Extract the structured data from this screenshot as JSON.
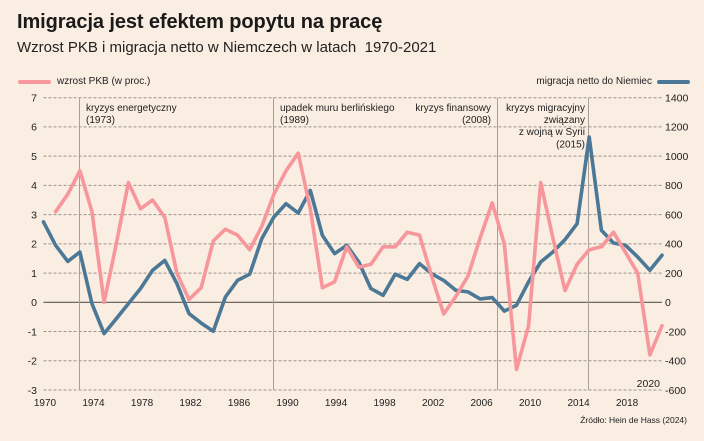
{
  "header": {
    "title": "Imigracja jest efektem popytu na pracę",
    "subtitle": "Wzrost PKB i migracja netto w Niemczech w latach  1970-2021"
  },
  "legend": {
    "gdp_label": "wzrost PKB (w proc.)",
    "migration_label": "migracja netto do Niemiec"
  },
  "colors": {
    "background": "#FAEDE1",
    "gdp": "#F7979B",
    "migration": "#4A7896",
    "grid": "#9C958E",
    "zero_line": "#5E5852"
  },
  "annotations": [
    {
      "year": 1973,
      "lines": [
        "kryzys energetyczny",
        "(1973)"
      ]
    },
    {
      "year": 1989,
      "lines": [
        "upadek muru berlińskiego",
        "(1989)"
      ]
    },
    {
      "year": 2008,
      "lines": [
        "kryzys finansowy",
        "(2008)"
      ]
    },
    {
      "year": 2015,
      "lines": [
        "kryzys migracyjny",
        "związany",
        "z wojną w Syrii",
        "(2015)"
      ]
    }
  ],
  "end_label": "2020",
  "source": "Źródło: Hein de Hass (2024)",
  "chart_data": {
    "type": "line",
    "title": "Imigracja jest efektem popytu na pracę",
    "subtitle": "Wzrost PKB i migracja netto w Niemczech w latach 1970-2021",
    "xlabel": "",
    "x_range": [
      1970,
      2021
    ],
    "x_ticks": [
      "1970",
      "1974",
      "1978",
      "1982",
      "1986",
      "1990",
      "1994",
      "1998",
      "2002",
      "2006",
      "2010",
      "2014",
      "2018"
    ],
    "y_left": {
      "label": "wzrost PKB (w proc.)",
      "range": [
        -3,
        7
      ],
      "ticks": [
        "7",
        "6",
        "5",
        "4",
        "3",
        "2",
        "1",
        "0",
        "-1",
        "-2",
        "-3"
      ]
    },
    "y_right": {
      "label": "migracja netto do Niemiec",
      "range": [
        -600,
        1400
      ],
      "ticks": [
        "1400",
        "1200",
        "1000",
        "800",
        "600",
        "400",
        "200",
        "0",
        "-200",
        "-400",
        "-600"
      ]
    },
    "grid": true,
    "legend_placement": "top",
    "series": [
      {
        "name": "migracja netto do Niemiec",
        "axis": "right",
        "color": "#4A7896",
        "x": [
          1970,
          1971,
          1972,
          1973,
          1974,
          1975,
          1976,
          1977,
          1978,
          1979,
          1980,
          1981,
          1982,
          1983,
          1984,
          1985,
          1986,
          1987,
          1988,
          1989,
          1990,
          1991,
          1992,
          1993,
          1994,
          1995,
          1996,
          1997,
          1998,
          1999,
          2000,
          2001,
          2002,
          2003,
          2004,
          2005,
          2006,
          2007,
          2008,
          2009,
          2010,
          2011,
          2012,
          2013,
          2014,
          2015,
          2016,
          2017,
          2018,
          2019,
          2020,
          2021
        ],
        "values": [
          550,
          390,
          280,
          344,
          -10,
          -214,
          -112,
          -9,
          94,
          219,
          287,
          128,
          -77,
          -142,
          -198,
          36,
          150,
          192,
          436,
          584,
          675,
          611,
          766,
          458,
          333,
          390,
          276,
          94,
          48,
          192,
          157,
          265,
          196,
          150,
          82,
          71,
          23,
          32,
          -60,
          -20,
          140,
          276,
          344,
          429,
          538,
          1131,
          493,
          406,
          390,
          310,
          219,
          322
        ]
      },
      {
        "name": "wzrost PKB (w proc.)",
        "axis": "left",
        "color": "#F7979B",
        "x": [
          1971,
          1972,
          1973,
          1974,
          1975,
          1976,
          1977,
          1978,
          1979,
          1980,
          1981,
          1982,
          1983,
          1984,
          1985,
          1986,
          1987,
          1988,
          1989,
          1990,
          1991,
          1992,
          1993,
          1994,
          1995,
          1996,
          1997,
          1998,
          1999,
          2000,
          2001,
          2002,
          2003,
          2004,
          2005,
          2006,
          2007,
          2008,
          2009,
          2010,
          2011,
          2012,
          2013,
          2014,
          2015,
          2016,
          2017,
          2018,
          2019,
          2020,
          2021
        ],
        "values": [
          3.1,
          3.7,
          4.5,
          3.1,
          0.0,
          2.0,
          4.1,
          3.2,
          3.5,
          2.9,
          1.0,
          0.1,
          0.5,
          2.1,
          2.5,
          2.3,
          1.8,
          2.6,
          3.7,
          4.5,
          5.1,
          3.2,
          0.5,
          0.7,
          1.9,
          1.2,
          1.3,
          1.9,
          1.9,
          2.4,
          2.3,
          0.9,
          -0.4,
          0.2,
          0.9,
          2.2,
          3.4,
          2.0,
          -2.3,
          -0.8,
          4.1,
          2.2,
          0.4,
          1.3,
          1.8,
          1.9,
          2.4,
          1.7,
          1.0,
          -1.8,
          -0.8
        ]
      }
    ]
  }
}
